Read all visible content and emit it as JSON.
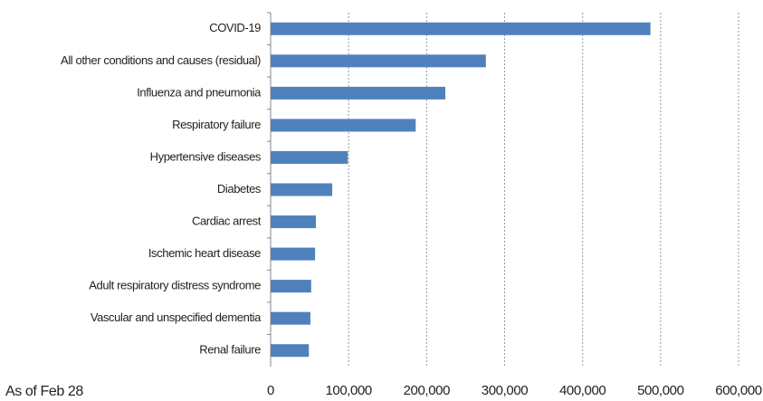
{
  "chart_data": {
    "type": "barh",
    "categories": [
      "COVID-19",
      "All other conditions and causes (residual)",
      "Influenza and pneumonia",
      "Respiratory failure",
      "Hypertensive diseases",
      "Diabetes",
      "Cardiac arrest",
      "Ischemic heart disease",
      "Adult respiratory distress syndrome",
      "Vascular and unspecified dementia",
      "Renal failure"
    ],
    "values": [
      487000,
      276000,
      224000,
      186000,
      99000,
      79000,
      58000,
      57000,
      52000,
      51000,
      49000
    ],
    "color": "#4f81bd",
    "xlim": [
      0,
      600000
    ],
    "xticks": [
      0,
      {
        "value": 100000,
        "label": "100,000"
      },
      {
        "value": 200000,
        "label": "200,000"
      },
      {
        "value": 300000,
        "label": "300,000"
      },
      {
        "value": 400000,
        "label": "400,000"
      },
      {
        "value": 500000,
        "label": "500,000"
      },
      {
        "value": 600000,
        "label": "600,000"
      }
    ],
    "grid": true,
    "annotation": "As of Feb 28"
  }
}
